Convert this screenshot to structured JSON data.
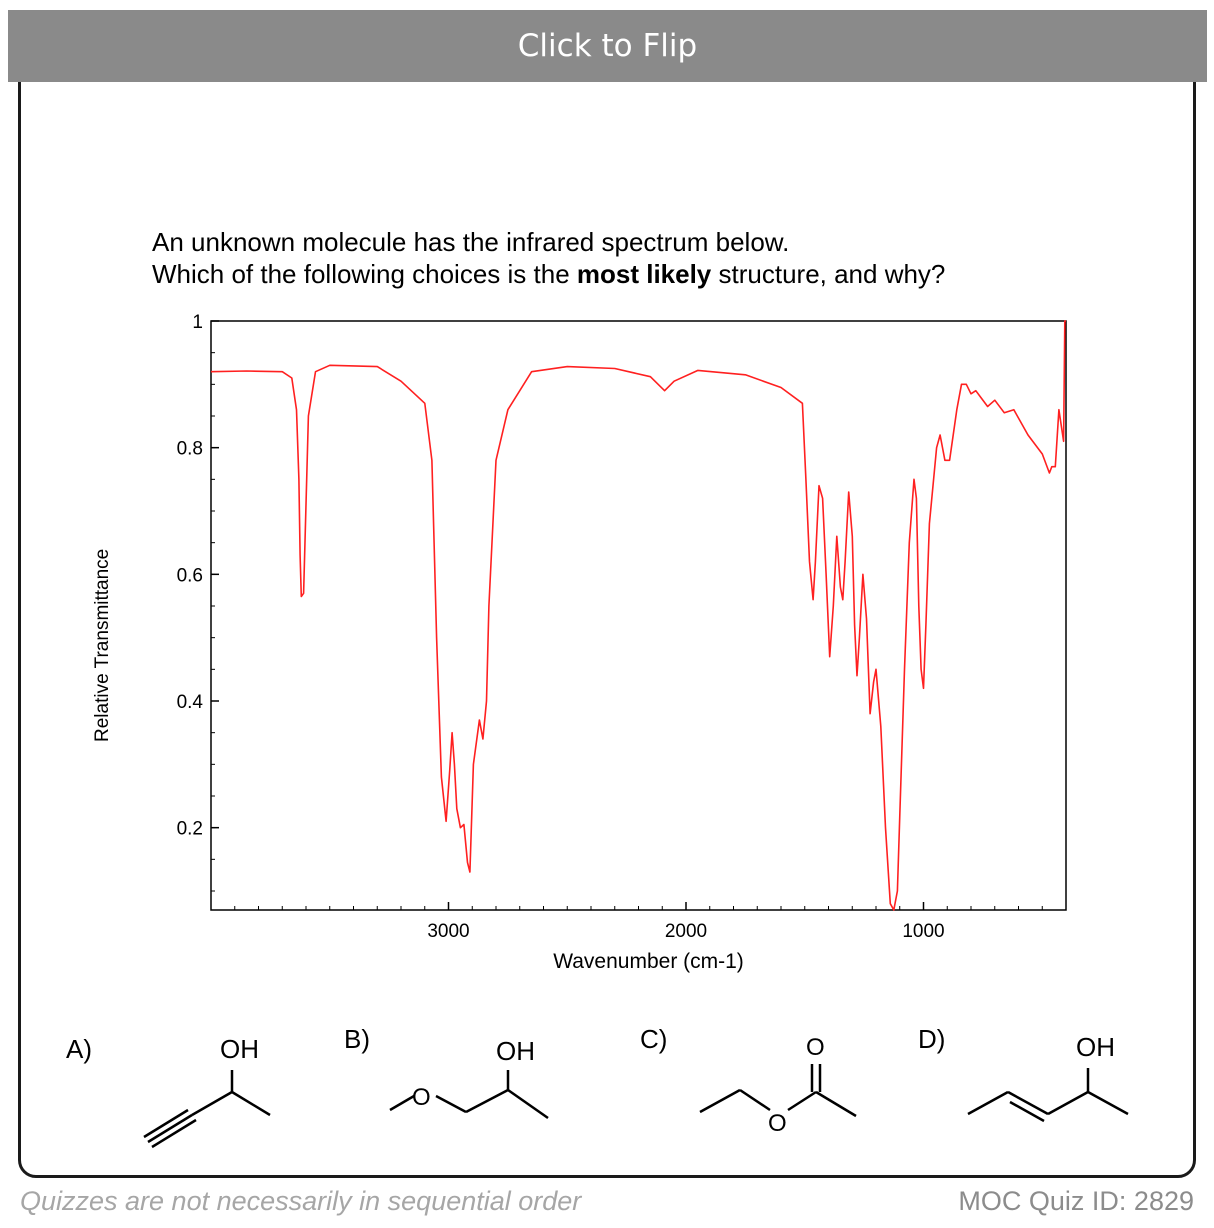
{
  "flip_button": {
    "label": "Click to Flip"
  },
  "question": {
    "line1": "An unknown molecule has the infrared spectrum below.",
    "line2_pre": "Which of the following choices is the ",
    "line2_bold": "most likely",
    "line2_post": " structure, and why?"
  },
  "chart_data": {
    "type": "line",
    "xlabel": "Wavenumber (cm-1)",
    "ylabel": "Relative Transmittance",
    "xlim": [
      4000,
      400
    ],
    "ylim": [
      0.07,
      1.0
    ],
    "x_ticks": [
      "3000",
      "2000",
      "1000"
    ],
    "y_ticks": [
      "1",
      "0.8",
      "0.6",
      "0.4",
      "0.2"
    ],
    "grid": false,
    "series": [
      {
        "color": "#ff2020",
        "x": [
          4000,
          3850,
          3700,
          3660,
          3640,
          3630,
          3625,
          3620,
          3610,
          3590,
          3560,
          3500,
          3300,
          3200,
          3100,
          3070,
          3050,
          3030,
          3010,
          2995,
          2985,
          2975,
          2965,
          2950,
          2935,
          2920,
          2910,
          2895,
          2870,
          2855,
          2840,
          2830,
          2800,
          2750,
          2650,
          2500,
          2300,
          2150,
          2090,
          2050,
          1950,
          1750,
          1600,
          1510,
          1495,
          1480,
          1465,
          1455,
          1440,
          1425,
          1410,
          1395,
          1380,
          1365,
          1350,
          1340,
          1330,
          1315,
          1300,
          1290,
          1280,
          1270,
          1255,
          1240,
          1225,
          1210,
          1200,
          1180,
          1160,
          1140,
          1125,
          1110,
          1100,
          1080,
          1060,
          1040,
          1030,
          1020,
          1010,
          1000,
          990,
          975,
          960,
          945,
          930,
          910,
          890,
          860,
          840,
          820,
          800,
          780,
          760,
          730,
          700,
          660,
          620,
          560,
          500,
          470,
          460,
          445,
          430,
          410,
          405,
          400
        ],
        "y": [
          0.92,
          0.921,
          0.92,
          0.91,
          0.86,
          0.75,
          0.63,
          0.565,
          0.57,
          0.85,
          0.92,
          0.93,
          0.928,
          0.905,
          0.87,
          0.78,
          0.5,
          0.28,
          0.21,
          0.29,
          0.35,
          0.3,
          0.23,
          0.2,
          0.205,
          0.145,
          0.13,
          0.3,
          0.37,
          0.34,
          0.4,
          0.55,
          0.78,
          0.86,
          0.92,
          0.928,
          0.925,
          0.912,
          0.89,
          0.905,
          0.922,
          0.915,
          0.895,
          0.87,
          0.75,
          0.62,
          0.56,
          0.62,
          0.74,
          0.72,
          0.6,
          0.47,
          0.55,
          0.66,
          0.58,
          0.56,
          0.62,
          0.73,
          0.66,
          0.52,
          0.44,
          0.5,
          0.6,
          0.53,
          0.38,
          0.43,
          0.45,
          0.36,
          0.2,
          0.08,
          0.07,
          0.1,
          0.22,
          0.45,
          0.65,
          0.75,
          0.72,
          0.55,
          0.45,
          0.42,
          0.52,
          0.68,
          0.74,
          0.8,
          0.82,
          0.78,
          0.78,
          0.86,
          0.9,
          0.9,
          0.885,
          0.89,
          0.88,
          0.865,
          0.875,
          0.855,
          0.86,
          0.82,
          0.79,
          0.76,
          0.77,
          0.77,
          0.86,
          0.81,
          1.0,
          1.0
        ]
      }
    ]
  },
  "choices": [
    {
      "label": "A)",
      "group": "OH"
    },
    {
      "label": "B)",
      "group": "OH",
      "atom": "O"
    },
    {
      "label": "C)",
      "carbonyl": "O",
      "ester_o": "O"
    },
    {
      "label": "D)",
      "group": "OH"
    }
  ],
  "footer": {
    "left": "Quizzes are not necessarily in sequential order",
    "right": "MOC Quiz ID: 2829"
  }
}
